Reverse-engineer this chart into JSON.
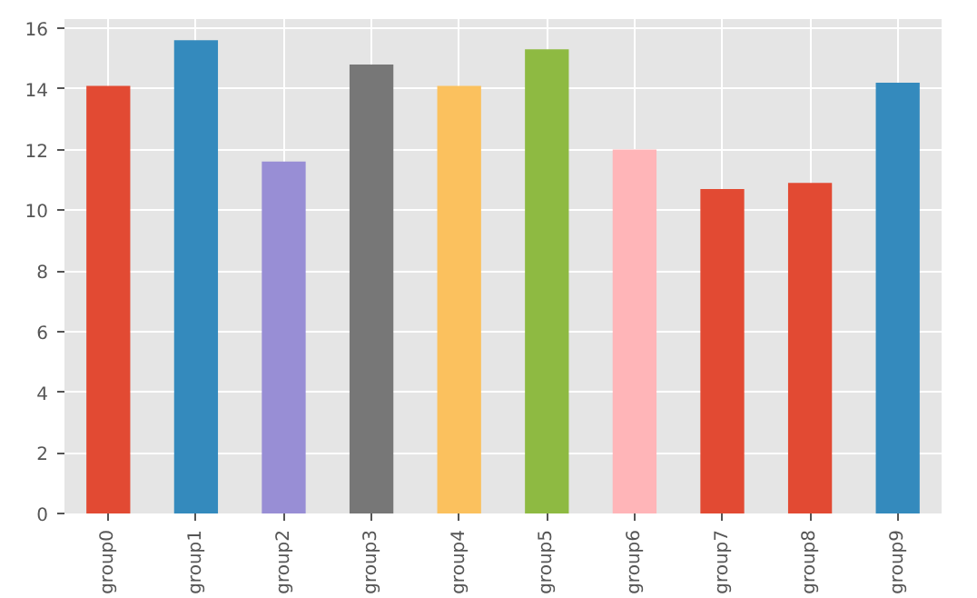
{
  "chart_data": {
    "type": "bar",
    "categories": [
      "group0",
      "group1",
      "group2",
      "group3",
      "group4",
      "group5",
      "group6",
      "group7",
      "group8",
      "group9"
    ],
    "values": [
      14.1,
      15.6,
      11.6,
      14.8,
      14.1,
      15.3,
      12.0,
      10.7,
      10.9,
      14.2
    ],
    "colors": [
      "#e24a33",
      "#348abd",
      "#988ed5",
      "#777777",
      "#fbc15e",
      "#8eba42",
      "#ffb5b8",
      "#e24a33",
      "#e24a33",
      "#348abd"
    ],
    "ylim": [
      0,
      16.3
    ],
    "yticks": [
      0,
      2,
      4,
      6,
      8,
      10,
      12,
      14,
      16
    ],
    "grid": true
  }
}
